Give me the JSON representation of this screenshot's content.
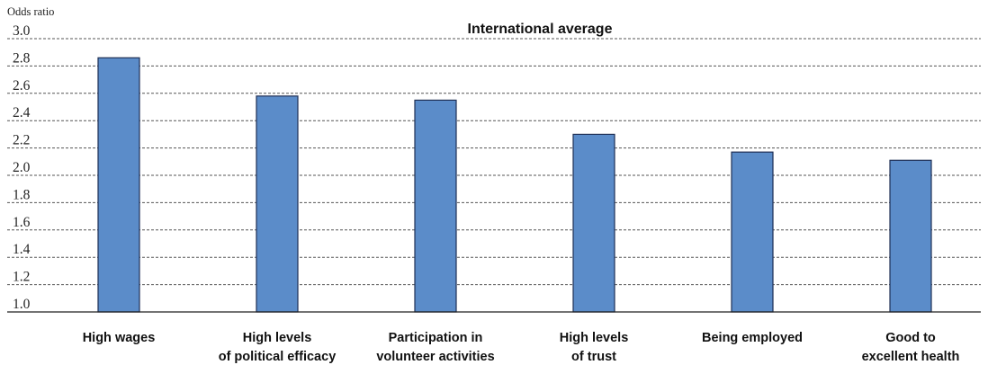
{
  "chart_data": {
    "type": "bar",
    "title": "International average",
    "ylabel": "Odds ratio",
    "xlabel": "",
    "ylim": [
      1.0,
      3.0
    ],
    "yticks": [
      "1.0",
      "1.2",
      "1.4",
      "1.6",
      "1.8",
      "2.0",
      "2.2",
      "2.4",
      "2.6",
      "2.8",
      "3.0"
    ],
    "categories": [
      [
        "High wages"
      ],
      [
        "High levels",
        "of political efficacy"
      ],
      [
        "Participation in",
        "volunteer activities"
      ],
      [
        "High levels",
        "of trust"
      ],
      [
        "Being employed"
      ],
      [
        "Good to",
        "excellent health"
      ]
    ],
    "values": [
      2.86,
      2.58,
      2.55,
      2.3,
      2.17,
      2.11
    ],
    "bar_color": "#5b8cc9",
    "bar_edge_color": "#1f2f55",
    "grid": true,
    "grid_style": "dashed",
    "legend": false
  }
}
